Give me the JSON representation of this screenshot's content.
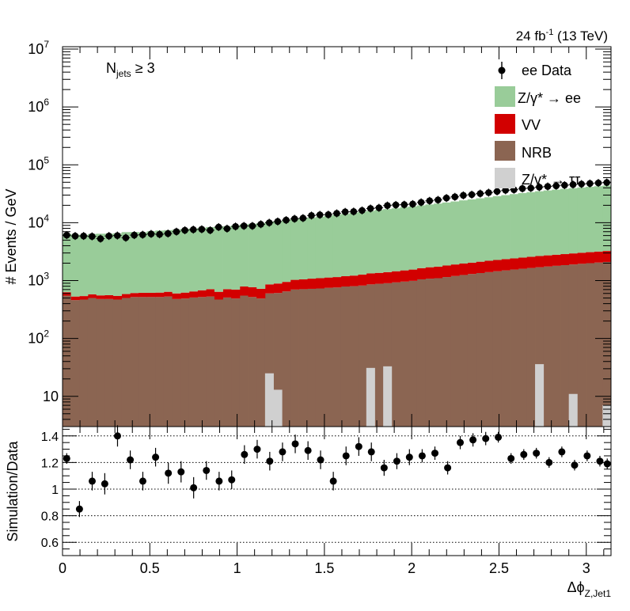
{
  "chart_data": [
    {
      "type": "bar",
      "stacked": true,
      "ylog": true,
      "ylabel": "# Events / GeV",
      "ylim": [
        3,
        11000000
      ],
      "xlim": [
        0,
        3.1416
      ],
      "lumi_label": "24 fb",
      "lumi_exp": "-1",
      "lumi_energy": "(13 TeV)",
      "category_label": {
        "main": "N",
        "sub": "jets",
        "rest": " ≥ 3"
      },
      "y_ticks": [
        {
          "v": 10,
          "m": "10",
          "e": ""
        },
        {
          "v": 100,
          "m": "10",
          "e": "2"
        },
        {
          "v": 1000,
          "m": "10",
          "e": "3"
        },
        {
          "v": 10000,
          "m": "10",
          "e": "4"
        },
        {
          "v": 100000,
          "m": "10",
          "e": "5"
        },
        {
          "v": 1000000,
          "m": "10",
          "e": "6"
        },
        {
          "v": 10000000,
          "m": "10",
          "e": "7"
        }
      ],
      "series": [
        {
          "key": "nrb",
          "name": "NRB",
          "color": "#8b6552",
          "values": [
            550,
            460,
            470,
            500,
            480,
            480,
            470,
            500,
            520,
            520,
            520,
            520,
            530,
            480,
            490,
            510,
            520,
            530,
            470,
            510,
            490,
            550,
            520,
            490,
            600,
            610,
            650,
            700,
            710,
            720,
            730,
            750,
            760,
            790,
            800,
            820,
            860,
            880,
            900,
            930,
            960,
            990,
            1050,
            1080,
            1100,
            1150,
            1200,
            1250,
            1300,
            1350,
            1400,
            1450,
            1500,
            1550,
            1600,
            1650,
            1700,
            1750,
            1800,
            1850,
            1900,
            1950,
            2000,
            2050,
            2100
          ]
        },
        {
          "key": "vv",
          "name": "VV",
          "color": "#d20000",
          "values": [
            80,
            70,
            70,
            80,
            75,
            80,
            75,
            85,
            90,
            95,
            95,
            100,
            110,
            120,
            130,
            140,
            160,
            180,
            170,
            200,
            210,
            240,
            250,
            230,
            260,
            280,
            300,
            330,
            340,
            360,
            370,
            380,
            390,
            400,
            420,
            450,
            470,
            480,
            500,
            520,
            540,
            560,
            590,
            620,
            640,
            670,
            700,
            720,
            740,
            770,
            800,
            820,
            850,
            870,
            900,
            930,
            960,
            980,
            1000,
            1020,
            1050,
            1080,
            1100,
            1120,
            1150
          ]
        },
        {
          "key": "dy",
          "name": "Z/γ* → ee",
          "color": "#99cc99",
          "values": [
            5800,
            5700,
            5600,
            5800,
            5900,
            5900,
            6000,
            6300,
            6300,
            6200,
            6500,
            6700,
            6800,
            7000,
            7200,
            7300,
            7500,
            7700,
            7900,
            8000,
            8300,
            8600,
            8800,
            9100,
            9600,
            9700,
            10100,
            10500,
            10800,
            11200,
            11600,
            12000,
            12600,
            13000,
            13700,
            14200,
            14700,
            15300,
            15800,
            16300,
            17000,
            17600,
            18300,
            19000,
            19700,
            20500,
            21400,
            22400,
            23300,
            24300,
            25300,
            26500,
            27600,
            28800,
            30000,
            31200,
            32300,
            33400,
            34500,
            35600,
            36600,
            37600,
            38600,
            39600,
            40600
          ]
        },
        {
          "key": "dytt",
          "name": "Z/γ* → ττ",
          "color": "#d0d0d0",
          "values": [
            0,
            0,
            0,
            0,
            0,
            0,
            0,
            0,
            0,
            0,
            0,
            0,
            0,
            0,
            0,
            0,
            0,
            0,
            0,
            0,
            0,
            0,
            0,
            0,
            25,
            13,
            0,
            0,
            0,
            0,
            0,
            0,
            0,
            0,
            0,
            0,
            31,
            0,
            33,
            0,
            0,
            0,
            0,
            0,
            0,
            0,
            0,
            0,
            0,
            0,
            0,
            0,
            0,
            0,
            0,
            0,
            36,
            0,
            0,
            0,
            11,
            0,
            0,
            0,
            7
          ]
        }
      ],
      "data_series": {
        "name": "ee Data",
        "values": [
          6100,
          5900,
          5900,
          5800,
          5300,
          5900,
          6000,
          5500,
          6100,
          6200,
          6400,
          6300,
          6500,
          7000,
          7400,
          7600,
          7700,
          7400,
          8400,
          7900,
          8600,
          8800,
          8800,
          9400,
          10000,
          10500,
          11100,
          11700,
          12000,
          13300,
          13700,
          13800,
          14500,
          15400,
          15600,
          16300,
          17600,
          18100,
          19800,
          20300,
          20500,
          21000,
          22500,
          23900,
          24800,
          26700,
          28000,
          29700,
          30600,
          31900,
          33100,
          34700,
          36400,
          37200,
          39000,
          39700,
          41200,
          42300,
          43400,
          44500,
          45600,
          46600,
          47600,
          48700,
          49500
        ]
      }
    },
    {
      "type": "scatter",
      "xlabel": "Δϕ",
      "xlabel_sub": "Z,Jet1",
      "ylabel": "Simulation/Data",
      "xlim": [
        0,
        3.1416
      ],
      "ylim": [
        0.5,
        1.47
      ],
      "gridlines": [
        0.6,
        0.8,
        1.0,
        1.2,
        1.4
      ],
      "y_ticks": [
        "0.6",
        "0.8",
        "1",
        "1.2",
        "1.4"
      ],
      "x_ticks": [
        "0",
        "0.5",
        "1",
        "1.5",
        "2",
        "2.5",
        "3"
      ],
      "x": [
        0.024,
        0.097,
        0.17,
        0.242,
        0.315,
        0.388,
        0.46,
        0.533,
        0.606,
        0.679,
        0.751,
        0.824,
        0.897,
        0.969,
        1.042,
        1.115,
        1.187,
        1.26,
        1.333,
        1.406,
        1.478,
        1.551,
        1.624,
        1.697,
        1.769,
        1.842,
        1.915,
        1.987,
        2.06,
        2.133,
        2.206,
        2.278,
        2.351,
        2.424,
        2.496,
        2.569,
        2.642,
        2.714,
        2.787,
        2.86,
        2.933,
        3.005,
        3.078
      ],
      "ratio": [
        1.23,
        0.85,
        1.06,
        1.04,
        1.4,
        1.22,
        1.06,
        1.24,
        1.12,
        1.13,
        1.01,
        1.14,
        1.06,
        1.07,
        1.26,
        1.3,
        1.21,
        1.28,
        1.34,
        1.29,
        1.22,
        1.06,
        1.25,
        1.32,
        1.28,
        1.16,
        1.21,
        1.24,
        1.25,
        1.27,
        1.16,
        1.35,
        1.37,
        1.38,
        1.39,
        1.23,
        1.26,
        1.27,
        1.2,
        1.27,
        1.17,
        1.27,
        1.19
      ],
      "errors": [
        0.04,
        0.06,
        0.07,
        0.08,
        0.08,
        0.07,
        0.07,
        0.07,
        0.08,
        0.08,
        0.08,
        0.07,
        0.07,
        0.07,
        0.07,
        0.07,
        0.07,
        0.07,
        0.07,
        0.07,
        0.07,
        0.07,
        0.07,
        0.07,
        0.07,
        0.06,
        0.06,
        0.06,
        0.05,
        0.05,
        0.05,
        0.05,
        0.05,
        0.05,
        0.04,
        0.04,
        0.04,
        0.04,
        0.04,
        0.04,
        0.04,
        0.04,
        0.04
      ],
      "ratio_tail_x": [
        2.86,
        2.933,
        3.005,
        3.078,
        3.12
      ],
      "ratio_tail": [
        1.28,
        1.18,
        1.25,
        1.21,
        1.19
      ]
    }
  ]
}
